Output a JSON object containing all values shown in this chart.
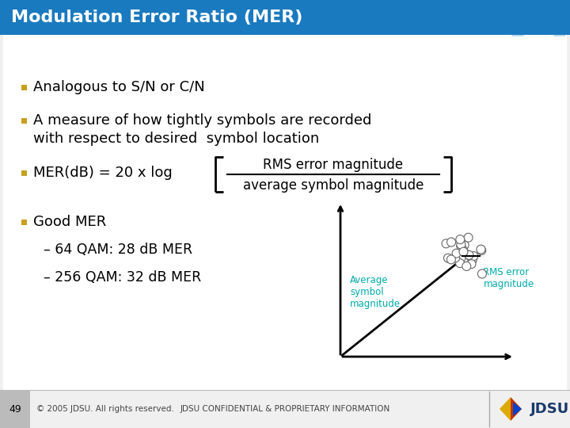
{
  "title": "Modulation Error Ratio (MER)",
  "title_bg_color": "#1a7abf",
  "title_text_color": "#ffffff",
  "title_fontsize": 16,
  "bg_color": "#f0f0f0",
  "content_bg": "#ffffff",
  "bullet_color": "#c8a020",
  "bullet1": "Analogous to S/N or C/N",
  "bullet2a": "A measure of how tightly symbols are recorded",
  "bullet2b": "with respect to desired  symbol location",
  "bullet3_pre": "MER(dB) = 20 x log",
  "bullet3_num": "RMS error magnitude",
  "bullet3_den": "average symbol magnitude",
  "bullet4": "Good MER",
  "bullet4a": "– 64 QAM: 28 dB MER",
  "bullet4b": "– 256 QAM: 32 dB MER",
  "footer_left_num": "49",
  "footer_copy": "© 2005 JDSU. All rights reserved.",
  "footer_center": "JDSU CONFIDENTIAL & PROPRIETARY INFORMATION",
  "teal_color": "#00aaaa",
  "text_color": "#000000"
}
